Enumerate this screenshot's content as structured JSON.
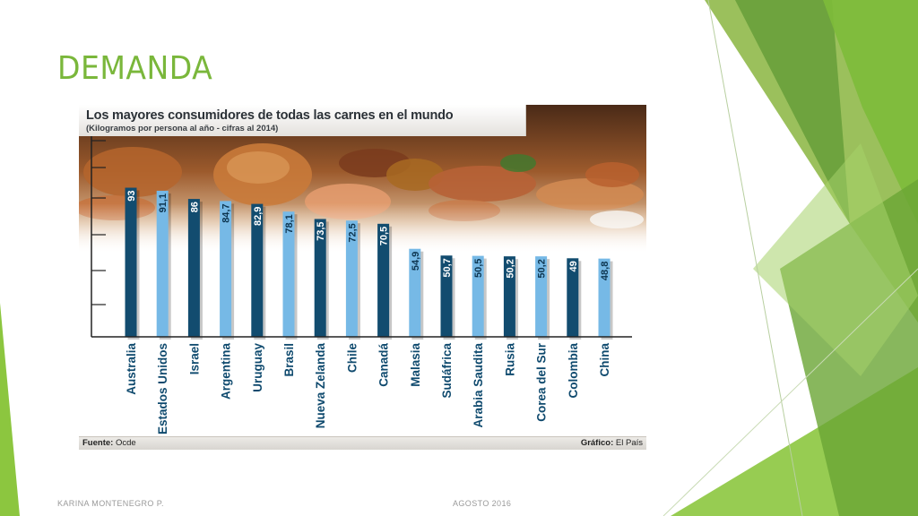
{
  "slide": {
    "title": "DEMANDA",
    "footer_left": "KARINA MONTENEGRO P.",
    "footer_right": "AGOSTO 2016"
  },
  "figure": {
    "banner_title": "Los mayores consumidores de todas las carnes en el mundo",
    "banner_subtitle": "(Kilogramos por persona al año - cifras al 2014)",
    "source_label": "Fuente:",
    "source_value": "Ocde",
    "credit_label": "Gráfico:",
    "credit_value": "El País"
  },
  "colors": {
    "accent_green": "#7ab73b",
    "bar_dark": "#124c6f",
    "bar_light": "#76b9e6"
  },
  "chart_data": {
    "type": "bar",
    "title": "Los mayores consumidores de todas las carnes en el mundo",
    "subtitle": "(Kilogramos por persona al año - cifras al 2014)",
    "categories": [
      "Australia",
      "Estados Unidos",
      "Israel",
      "Argentina",
      "Uruguay",
      "Brasil",
      "Nueva Zelanda",
      "Chile",
      "Canadá",
      "Malasia",
      "Sudáfrica",
      "Arabia Saudita",
      "Rusia",
      "Corea del Sur",
      "Colombia",
      "China"
    ],
    "values": [
      93,
      91.1,
      86,
      84.7,
      82.9,
      78.1,
      73.5,
      72.5,
      70.5,
      54.9,
      50.7,
      50.5,
      50.2,
      50.2,
      49,
      48.8
    ],
    "value_labels": [
      "93",
      "91,1",
      "86",
      "84,7",
      "82,9",
      "78,1",
      "73,5",
      "72,5",
      "70,5",
      "54,9",
      "50,7",
      "50,5",
      "50,2",
      "50,2",
      "49",
      "48,8"
    ],
    "xlabel": "",
    "ylabel": "",
    "ylim": [
      0,
      100
    ],
    "grid": false,
    "legend": "none"
  }
}
